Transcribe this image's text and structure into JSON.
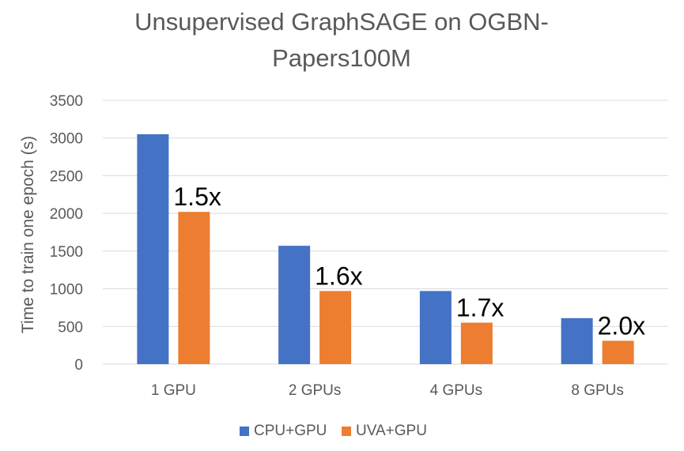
{
  "chart_data": {
    "type": "bar",
    "title_lines": [
      "Unsupervised GraphSAGE on OGBN-",
      "Papers100M"
    ],
    "xlabel": "",
    "ylabel": "Time to train one epoch (s)",
    "categories": [
      "1 GPU",
      "2 GPUs",
      "4 GPUs",
      "8 GPUs"
    ],
    "series": [
      {
        "name": "CPU+GPU",
        "color": "#4472C4",
        "values": [
          3050,
          1570,
          970,
          610
        ]
      },
      {
        "name": "UVA+GPU",
        "color": "#ED7D31",
        "values": [
          2020,
          970,
          550,
          310
        ]
      }
    ],
    "annotations": [
      "1.5x",
      "1.6x",
      "1.7x",
      "2.0x"
    ],
    "ylim": [
      0,
      3500
    ],
    "yticks": [
      0,
      500,
      1000,
      1500,
      2000,
      2500,
      3000,
      3500
    ],
    "grid": true,
    "legend_position": "bottom"
  }
}
